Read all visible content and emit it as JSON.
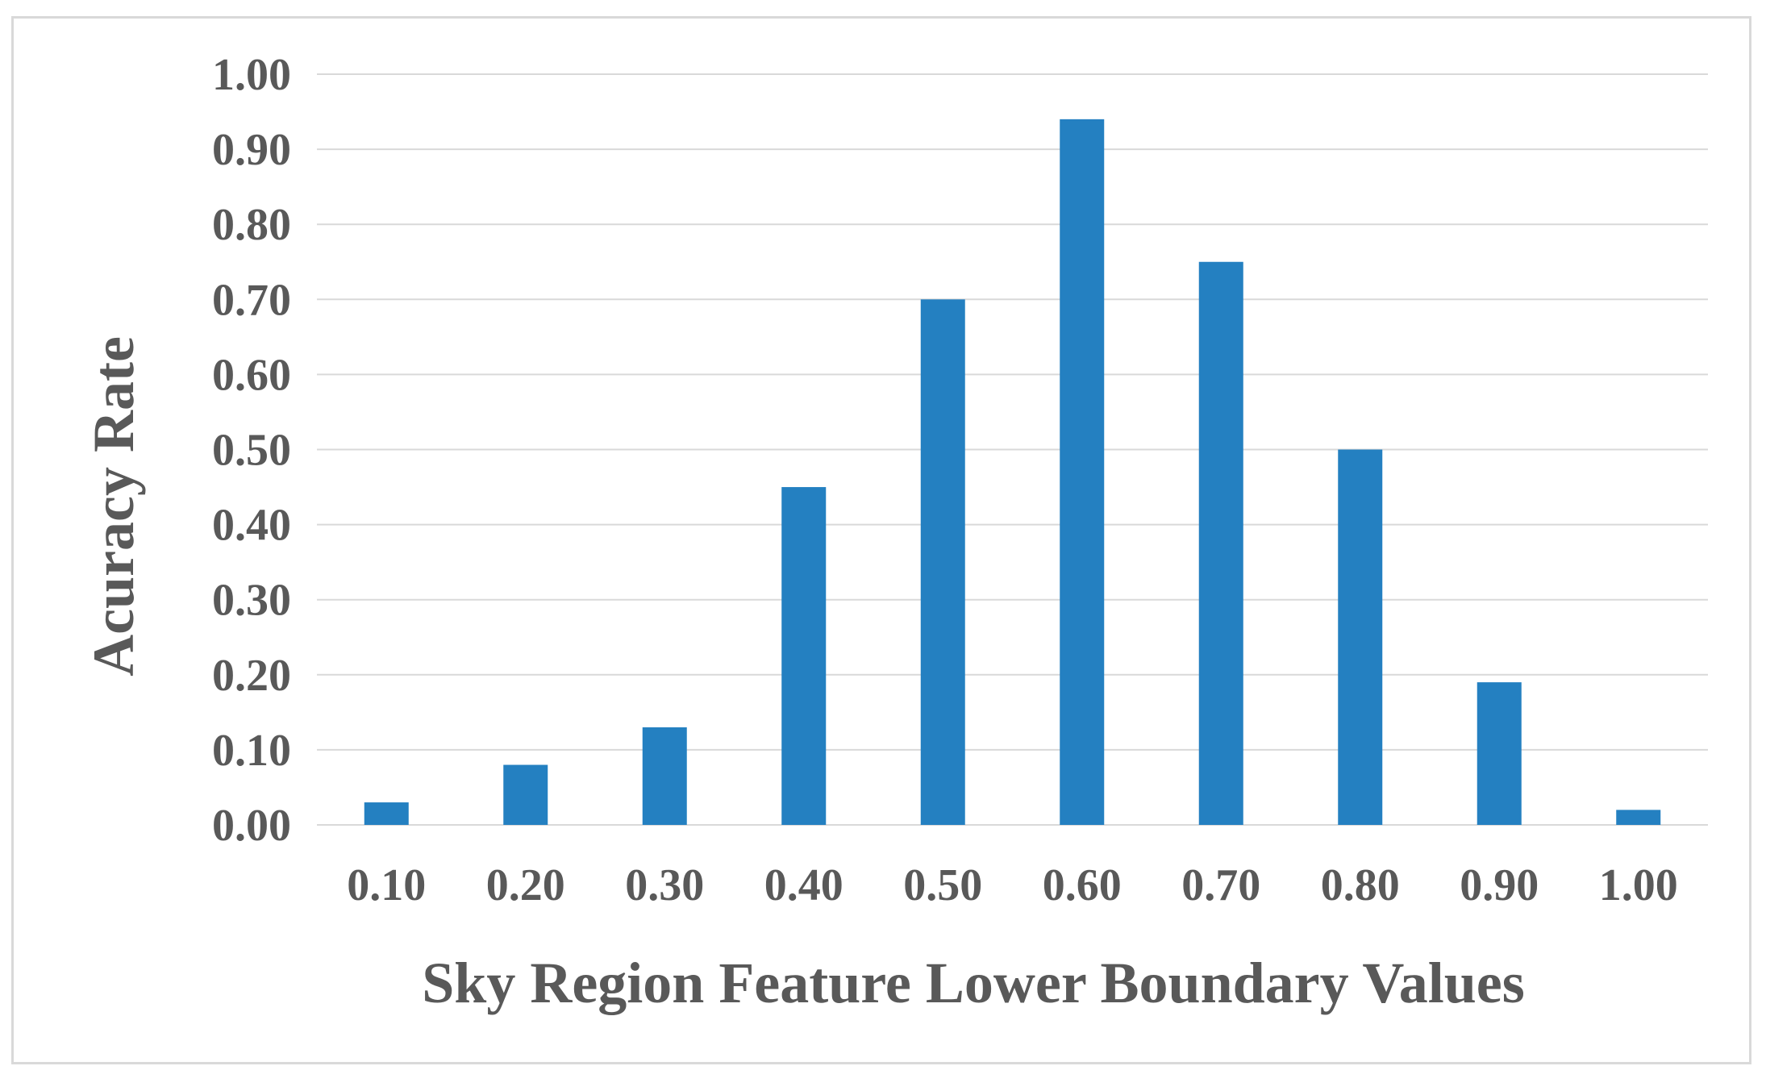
{
  "chart_data": {
    "type": "bar",
    "title": "",
    "xlabel": "Sky Region Feature Lower Boundary Values",
    "ylabel": "Acuracy Rate",
    "categories": [
      "0.10",
      "0.20",
      "0.30",
      "0.40",
      "0.50",
      "0.60",
      "0.70",
      "0.80",
      "0.90",
      "1.00"
    ],
    "values": [
      0.03,
      0.08,
      0.13,
      0.45,
      0.7,
      0.94,
      0.75,
      0.5,
      0.19,
      0.02
    ],
    "ylim": [
      0,
      1.0
    ],
    "yticks": [
      "0.00",
      "0.10",
      "0.20",
      "0.30",
      "0.40",
      "0.50",
      "0.60",
      "0.70",
      "0.80",
      "0.90",
      "1.00"
    ],
    "grid": true,
    "legend": "none",
    "bar_color": "#2480c1",
    "grid_color": "#d9d9d9",
    "text_color": "#595959"
  }
}
